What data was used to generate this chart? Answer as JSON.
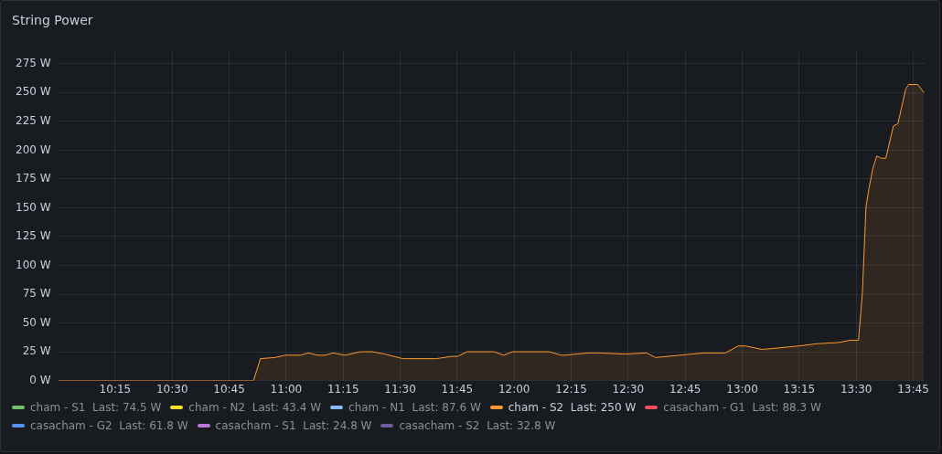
{
  "chart_data": {
    "type": "area",
    "title": "String Power",
    "xlim": [
      10,
      13.8
    ],
    "ylim": [
      0,
      285
    ],
    "xticks": [
      {
        "value": 10.25,
        "label": "10:15"
      },
      {
        "value": 10.5,
        "label": "10:30"
      },
      {
        "value": 10.75,
        "label": "10:45"
      },
      {
        "value": 11,
        "label": "11:00"
      },
      {
        "value": 11.25,
        "label": "11:15"
      },
      {
        "value": 11.5,
        "label": "11:30"
      },
      {
        "value": 11.75,
        "label": "11:45"
      },
      {
        "value": 12,
        "label": "12:00"
      },
      {
        "value": 12.25,
        "label": "12:15"
      },
      {
        "value": 12.5,
        "label": "12:30"
      },
      {
        "value": 12.75,
        "label": "12:45"
      },
      {
        "value": 13,
        "label": "13:00"
      },
      {
        "value": 13.25,
        "label": "13:15"
      },
      {
        "value": 13.5,
        "label": "13:30"
      },
      {
        "value": 13.75,
        "label": "13:45"
      }
    ],
    "yticks": [
      {
        "value": 0,
        "label": "0 W"
      },
      {
        "value": 25,
        "label": "25 W"
      },
      {
        "value": 50,
        "label": "50 W"
      },
      {
        "value": 75,
        "label": "75 W"
      },
      {
        "value": 100,
        "label": "100 W"
      },
      {
        "value": 125,
        "label": "125 W"
      },
      {
        "value": 150,
        "label": "150 W"
      },
      {
        "value": 175,
        "label": "175 W"
      },
      {
        "value": 200,
        "label": "200 W"
      },
      {
        "value": 225,
        "label": "225 W"
      },
      {
        "value": 250,
        "label": "250 W"
      },
      {
        "value": 275,
        "label": "275 W"
      }
    ],
    "grid": true,
    "legend": "bottom",
    "marker": "none",
    "series": [
      {
        "name": "cham - S1  Last: 74.5 W",
        "color": "#73bf69",
        "values": [
          null
        ]
      },
      {
        "name": "cham - N2  Last: 43.4 W",
        "color": "#fade2a",
        "values": [
          null
        ]
      },
      {
        "name": "cham - N1  Last: 87.6 W",
        "color": "#8ab8ff",
        "values": [
          null
        ]
      },
      {
        "name": "cham - S2  Last: 250 W",
        "color": "#ff9830",
        "x": [
          10,
          10.857,
          10.887,
          10.95,
          10.997,
          11.063,
          11.097,
          11.137,
          11.172,
          11.205,
          11.258,
          11.325,
          11.378,
          11.432,
          11.512,
          11.658,
          11.725,
          11.752,
          11.793,
          11.913,
          11.953,
          11.993,
          12.153,
          12.207,
          12.22,
          12.327,
          12.367,
          12.487,
          12.58,
          12.62,
          12.833,
          12.927,
          12.982,
          13.015,
          13.088,
          13.248,
          13.328,
          13.422,
          13.475,
          13.51,
          13.527,
          13.543,
          13.557,
          13.573,
          13.59,
          13.61,
          13.63,
          13.663,
          13.683,
          13.717,
          13.73,
          13.77,
          13.797
        ],
        "values": [
          0,
          0,
          19,
          20,
          22,
          22,
          24,
          22,
          22,
          24,
          22,
          25,
          25,
          23,
          19,
          19,
          21,
          21,
          25,
          25,
          22,
          25,
          25,
          22,
          22,
          24,
          24,
          23,
          24,
          20,
          24,
          24,
          30,
          30,
          27,
          30,
          32,
          33,
          35,
          35,
          76,
          151,
          168,
          184,
          195,
          193,
          193,
          221,
          223,
          253,
          257,
          257,
          250
        ]
      },
      {
        "name": "casacham - G1  Last: 88.3 W",
        "color": "#f2495c",
        "values": [
          null
        ]
      },
      {
        "name": "casacham - G2  Last: 61.8 W",
        "color": "#5794f2",
        "values": [
          null
        ]
      },
      {
        "name": "casacham - S1  Last: 24.8 W",
        "color": "#b877d9",
        "values": [
          null
        ]
      },
      {
        "name": "casacham - S2  Last: 32.8 W",
        "color": "#705da0",
        "values": [
          null
        ]
      }
    ]
  }
}
